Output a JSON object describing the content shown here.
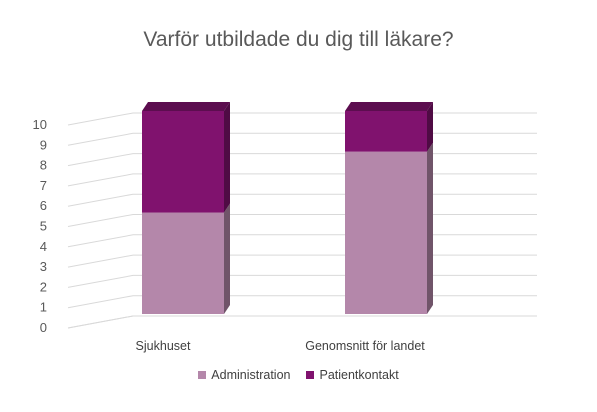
{
  "chart_data": {
    "type": "bar",
    "stacked": true,
    "three_d": true,
    "title": "Varför utbildade du dig till läkare?",
    "categories": [
      "Sjukhuset",
      "Genomsnitt för landet"
    ],
    "series": [
      {
        "name": "Administration",
        "values": [
          5,
          8
        ],
        "color": "#b487aa"
      },
      {
        "name": "Patientkontakt",
        "values": [
          5,
          2
        ],
        "color": "#80126e"
      }
    ],
    "y_ticks": [
      "0",
      "1",
      "2",
      "3",
      "4",
      "5",
      "6",
      "7",
      "8",
      "9",
      "10"
    ],
    "ylim": [
      0,
      10
    ],
    "grid": true,
    "legend_position": "bottom"
  }
}
